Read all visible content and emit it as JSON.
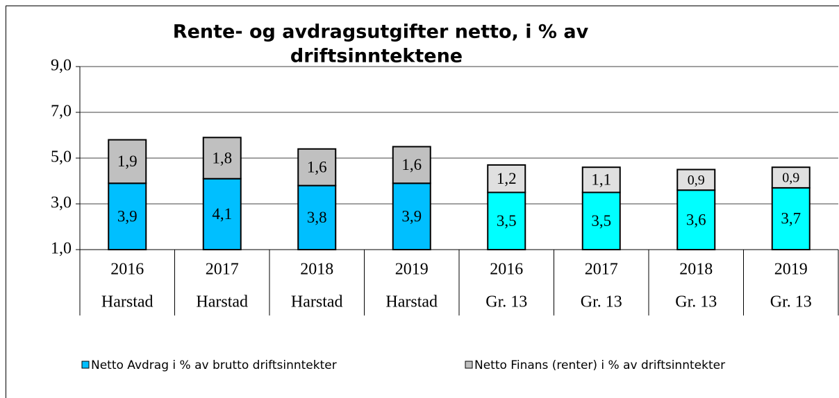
{
  "chart_data": {
    "type": "stacked_bar",
    "title": [
      "Rente- og avdragsutgifter netto, i % av",
      "driftsinntektene"
    ],
    "categories": [
      [
        "2016",
        "Harstad"
      ],
      [
        "2017",
        "Harstad"
      ],
      [
        "2018",
        "Harstad"
      ],
      [
        "2019",
        "Harstad"
      ],
      [
        "2016",
        "Gr. 13"
      ],
      [
        "2017",
        "Gr. 13"
      ],
      [
        "2018",
        "Gr. 13"
      ],
      [
        "2019",
        "Gr. 13"
      ]
    ],
    "series": [
      {
        "name": "Netto Avdrag i % av brutto driftsinntekter",
        "color": "#00bfff",
        "colors": [
          "#00bfff",
          "#00bfff",
          "#00bfff",
          "#00bfff",
          "#00ffff",
          "#00ffff",
          "#00ffff",
          "#00ffff"
        ],
        "values": [
          3.9,
          4.1,
          3.8,
          3.9,
          3.5,
          3.5,
          3.6,
          3.7
        ],
        "value_labels": [
          "3,9",
          "4,1",
          "3,8",
          "3,9",
          "3,5",
          "3,5",
          "3,6",
          "3,7"
        ]
      },
      {
        "name": "Netto Finans (renter)  i % av driftsinntekter",
        "color": "#c0c0c0",
        "colors": [
          "#c0c0c0",
          "#c0c0c0",
          "#c0c0c0",
          "#c0c0c0",
          "#e0e0e0",
          "#e0e0e0",
          "#e0e0e0",
          "#e0e0e0"
        ],
        "values": [
          1.9,
          1.8,
          1.6,
          1.6,
          1.2,
          1.1,
          0.9,
          0.9
        ],
        "value_labels": [
          "1,9",
          "1,8",
          "1,6",
          "1,6",
          "1,2",
          "1,1",
          "0,9",
          "0,9"
        ]
      }
    ],
    "ylim": [
      1,
      9
    ],
    "yticks": [
      {
        "value": 1,
        "label": "1,0"
      },
      {
        "value": 3,
        "label": "3,0"
      },
      {
        "value": 5,
        "label": "5,0"
      },
      {
        "value": 7,
        "label": "7,0"
      },
      {
        "value": 9,
        "label": "9,0"
      }
    ],
    "grid": true
  }
}
